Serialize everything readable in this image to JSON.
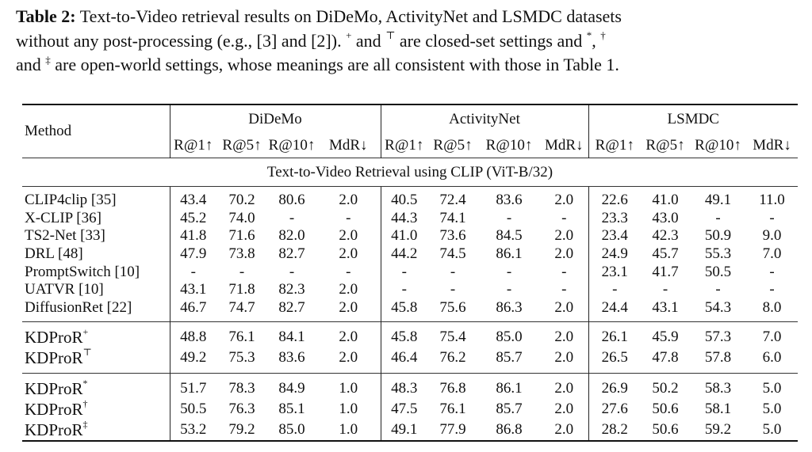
{
  "caption": {
    "label": "Table 2:",
    "line1": " Text-to-Video retrieval results on DiDeMo, ActivityNet and LSMDC datasets",
    "line2a": "without any post-processing (e.g., [3] and [2]). ",
    "sym_plus": "+",
    "line2b": " and ",
    "sym_top": "⊤",
    "line2c": " are closed-set settings and ",
    "sym_star": "*",
    "line2d": ", ",
    "sym_dagger": "†",
    "line3a": "and ",
    "sym_ddagger": "‡",
    "line3b": " are open-world settings, whose meanings are all consistent with those in Table 1."
  },
  "table": {
    "method_header": "Method",
    "groups": [
      "DiDeMo",
      "ActivityNet",
      "LSMDC"
    ],
    "metrics": [
      "R@1↑",
      "R@5↑",
      "R@10↑",
      "MdR↓"
    ],
    "section_title": "Text-to-Video Retrieval using CLIP (ViT-B/32)",
    "baseline_rows": [
      {
        "method": "CLIP4clip [35]",
        "vals": [
          "43.4",
          "70.2",
          "80.6",
          "2.0",
          "40.5",
          "72.4",
          "83.6",
          "2.0",
          "22.6",
          "41.0",
          "49.1",
          "11.0"
        ]
      },
      {
        "method": "X-CLIP [36]",
        "vals": [
          "45.2",
          "74.0",
          "-",
          "-",
          "44.3",
          "74.1",
          "-",
          "-",
          "23.3",
          "43.0",
          "-",
          "-"
        ]
      },
      {
        "method": "TS2-Net [33]",
        "vals": [
          "41.8",
          "71.6",
          "82.0",
          "2.0",
          "41.0",
          "73.6",
          "84.5",
          "2.0",
          "23.4",
          "42.3",
          "50.9",
          "9.0"
        ]
      },
      {
        "method": "DRL [48]",
        "vals": [
          "47.9",
          "73.8",
          "82.7",
          "2.0",
          "44.2",
          "74.5",
          "86.1",
          "2.0",
          "24.9",
          "45.7",
          "55.3",
          "7.0"
        ]
      },
      {
        "method": "PromptSwitch [10]",
        "vals": [
          "-",
          "-",
          "-",
          "-",
          "-",
          "-",
          "-",
          "-",
          "23.1",
          "41.7",
          "50.5",
          "-"
        ]
      },
      {
        "method": "UATVR [10]",
        "vals": [
          "43.1",
          "71.8",
          "82.3",
          "2.0",
          "-",
          "-",
          "-",
          "-",
          "-",
          "-",
          "-",
          "-"
        ]
      },
      {
        "method": "DiffusionRet [22]",
        "vals": [
          "46.7",
          "74.7",
          "82.7",
          "2.0",
          "45.8",
          "75.6",
          "86.3",
          "2.0",
          "24.4",
          "43.1",
          "54.3",
          "8.0"
        ]
      }
    ],
    "closed_rows": [
      {
        "method": "KDProR",
        "sup": "+",
        "vals": [
          "48.8",
          "76.1",
          "84.1",
          "2.0",
          "45.8",
          "75.4",
          "85.0",
          "2.0",
          "26.1",
          "45.9",
          "57.3",
          "7.0"
        ]
      },
      {
        "method": "KDProR",
        "sup": "⊤",
        "vals": [
          "49.2",
          "75.3",
          "83.6",
          "2.0",
          "46.4",
          "76.2",
          "85.7",
          "2.0",
          "26.5",
          "47.8",
          "57.8",
          "6.0"
        ]
      }
    ],
    "open_rows": [
      {
        "method": "KDProR",
        "sup": "*",
        "vals": [
          "51.7",
          "78.3",
          "84.9",
          "1.0",
          "48.3",
          "76.8",
          "86.1",
          "2.0",
          "26.9",
          "50.2",
          "58.3",
          "5.0"
        ]
      },
      {
        "method": "KDProR",
        "sup": "†",
        "vals": [
          "50.5",
          "76.3",
          "85.1",
          "1.0",
          "47.5",
          "76.1",
          "85.7",
          "2.0",
          "27.6",
          "50.6",
          "58.1",
          "5.0"
        ]
      },
      {
        "method": "KDProR",
        "sup": "‡",
        "vals": [
          "53.2",
          "79.2",
          "85.0",
          "1.0",
          "49.1",
          "77.9",
          "86.8",
          "2.0",
          "28.2",
          "50.6",
          "59.2",
          "5.0"
        ]
      }
    ]
  }
}
